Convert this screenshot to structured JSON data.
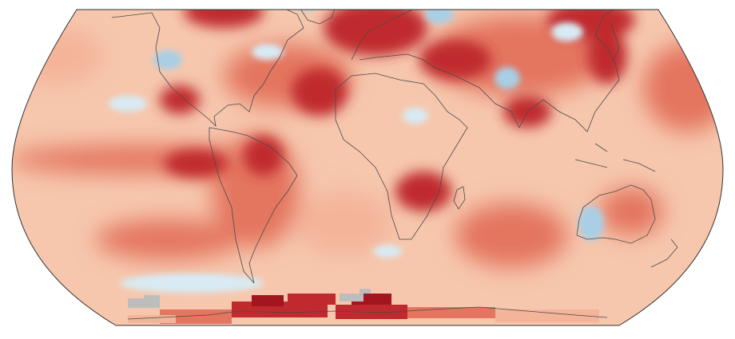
{
  "map": {
    "projection": "robinson",
    "map_type": "temperature anomaly heatmap",
    "visible_text": [],
    "colors": {
      "background": "#ffffff",
      "ocean_base": "#f6c7ad",
      "warm_light": "#f4b49a",
      "warm_mid": "#e4755f",
      "warm_strong": "#c02a2f",
      "warm_extreme": "#a3151f",
      "cool_light": "#d8ebf4",
      "cool_mid": "#a8cfe6",
      "no_data": "#bdbdbd",
      "coastline": "#4a4a4a"
    },
    "layers": {
      "coastlines": true,
      "graticule": false,
      "legend": false
    }
  }
}
